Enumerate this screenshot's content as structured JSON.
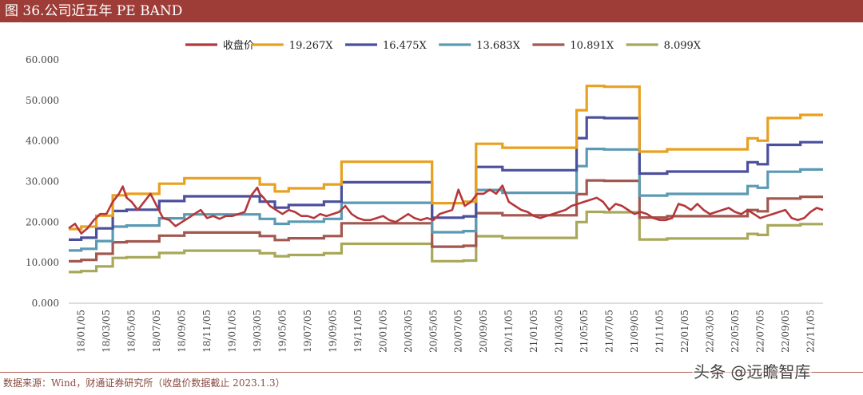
{
  "header": {
    "title": "图 36.公司近五年 PE BAND"
  },
  "footer": {
    "source": "数据来源：Wind，财通证券研究所（收盘价数据截止 2023.1.3）"
  },
  "watermark": {
    "text": "头条 @远瞻智库"
  },
  "colors": {
    "title_bg": "#9e3d37",
    "close": "#b5373c",
    "b19": "#e8a020",
    "b16": "#4b4f9c",
    "b13": "#5b9ab3",
    "b10": "#a2574f",
    "b8": "#a8a85a"
  },
  "chart_data": {
    "type": "line",
    "title": "图 36.公司近五年 PE BAND",
    "ylim": [
      0,
      60
    ],
    "yticks": [
      "0.000",
      "10.000",
      "20.000",
      "30.000",
      "40.000",
      "50.000",
      "60.000"
    ],
    "xlim": [
      0,
      60
    ],
    "xticks": [
      "18/01/05",
      "18/03/05",
      "18/05/05",
      "18/07/05",
      "18/09/05",
      "18/11/05",
      "19/01/05",
      "19/03/05",
      "19/05/05",
      "19/07/05",
      "19/09/05",
      "19/11/05",
      "20/01/05",
      "20/03/05",
      "20/05/05",
      "20/07/05",
      "20/09/05",
      "20/11/05",
      "21/01/05",
      "21/03/05",
      "21/05/05",
      "21/07/05",
      "21/09/05",
      "21/11/05",
      "22/01/05",
      "22/03/05",
      "22/05/05",
      "22/07/05",
      "22/09/05",
      "22/11/05"
    ],
    "eps_steps": [
      {
        "from": 0,
        "to": 1,
        "eps": 0.95
      },
      {
        "from": 1,
        "to": 2.2,
        "eps": 0.98
      },
      {
        "from": 2.2,
        "to": 3.5,
        "eps": 1.12
      },
      {
        "from": 3.5,
        "to": 4.6,
        "eps": 1.38
      },
      {
        "from": 4.6,
        "to": 7.2,
        "eps": 1.4
      },
      {
        "from": 7.2,
        "to": 9.2,
        "eps": 1.53
      },
      {
        "from": 9.2,
        "to": 11.2,
        "eps": 1.6
      },
      {
        "from": 11.2,
        "to": 15.2,
        "eps": 1.6
      },
      {
        "from": 15.2,
        "to": 16.4,
        "eps": 1.52
      },
      {
        "from": 16.4,
        "to": 17.5,
        "eps": 1.43
      },
      {
        "from": 17.5,
        "to": 20.3,
        "eps": 1.47
      },
      {
        "from": 20.3,
        "to": 21.7,
        "eps": 1.52
      },
      {
        "from": 21.7,
        "to": 28.9,
        "eps": 1.81
      },
      {
        "from": 28.9,
        "to": 31.4,
        "eps": 1.28
      },
      {
        "from": 31.4,
        "to": 32.4,
        "eps": 1.3
      },
      {
        "from": 32.4,
        "to": 34.5,
        "eps": 2.04
      },
      {
        "from": 34.5,
        "to": 40.4,
        "eps": 1.99
      },
      {
        "from": 40.4,
        "to": 41.2,
        "eps": 2.47
      },
      {
        "from": 41.2,
        "to": 42.6,
        "eps": 2.78
      },
      {
        "from": 42.6,
        "to": 45.4,
        "eps": 2.77
      },
      {
        "from": 45.4,
        "to": 47.6,
        "eps": 1.94
      },
      {
        "from": 47.6,
        "to": 49.5,
        "eps": 1.97
      },
      {
        "from": 49.5,
        "to": 54.0,
        "eps": 1.97
      },
      {
        "from": 54.0,
        "to": 54.8,
        "eps": 2.11
      },
      {
        "from": 54.8,
        "to": 55.6,
        "eps": 2.08
      },
      {
        "from": 55.6,
        "to": 56.6,
        "eps": 2.37
      },
      {
        "from": 56.6,
        "to": 58.2,
        "eps": 2.37
      },
      {
        "from": 58.2,
        "to": 60,
        "eps": 2.41
      }
    ],
    "series": [
      {
        "name": "收盘价",
        "color_key": "close",
        "points": [
          [
            0,
            18.5
          ],
          [
            0.5,
            19.6
          ],
          [
            1,
            17.2
          ],
          [
            1.5,
            18.5
          ],
          [
            2,
            20.5
          ],
          [
            2.5,
            22
          ],
          [
            3,
            22
          ],
          [
            3.5,
            25
          ],
          [
            4,
            27
          ],
          [
            4.3,
            28.8
          ],
          [
            4.6,
            26
          ],
          [
            5,
            25
          ],
          [
            5.5,
            23
          ],
          [
            6,
            25
          ],
          [
            6.5,
            27
          ],
          [
            7,
            24
          ],
          [
            7.5,
            21
          ],
          [
            8,
            20.5
          ],
          [
            8.5,
            19
          ],
          [
            9,
            20
          ],
          [
            9.5,
            21
          ],
          [
            10,
            22
          ],
          [
            10.5,
            23
          ],
          [
            11,
            21
          ],
          [
            11.5,
            21.5
          ],
          [
            12,
            20.8
          ],
          [
            12.5,
            21.5
          ],
          [
            13,
            21.5
          ],
          [
            13.5,
            22
          ],
          [
            14,
            22.5
          ],
          [
            14.5,
            26.5
          ],
          [
            15,
            28.5
          ],
          [
            15.2,
            27
          ],
          [
            15.5,
            26
          ],
          [
            16,
            24
          ],
          [
            16.5,
            23
          ],
          [
            17,
            22
          ],
          [
            17.5,
            23
          ],
          [
            18,
            22.5
          ],
          [
            18.5,
            21.5
          ],
          [
            19,
            21.5
          ],
          [
            19.5,
            21
          ],
          [
            20,
            22
          ],
          [
            20.5,
            21.5
          ],
          [
            21,
            22
          ],
          [
            21.5,
            22.5
          ],
          [
            22,
            24
          ],
          [
            22.5,
            22
          ],
          [
            23,
            21
          ],
          [
            23.5,
            20.5
          ],
          [
            24,
            20.5
          ],
          [
            24.5,
            21
          ],
          [
            25,
            21.5
          ],
          [
            25.5,
            20.5
          ],
          [
            26,
            20
          ],
          [
            26.5,
            21
          ],
          [
            27,
            22
          ],
          [
            27.5,
            21
          ],
          [
            28,
            20.5
          ],
          [
            28.5,
            21
          ],
          [
            29,
            20.5
          ],
          [
            29.5,
            22
          ],
          [
            30,
            22.5
          ],
          [
            30.5,
            23
          ],
          [
            31,
            28
          ],
          [
            31.5,
            24
          ],
          [
            32,
            25
          ],
          [
            32.5,
            27
          ],
          [
            33,
            27
          ],
          [
            33.5,
            28
          ],
          [
            34,
            27
          ],
          [
            34.5,
            29
          ],
          [
            35,
            25
          ],
          [
            35.5,
            24
          ],
          [
            36,
            23
          ],
          [
            36.5,
            22.5
          ],
          [
            37,
            21.5
          ],
          [
            37.5,
            21
          ],
          [
            38,
            21.5
          ],
          [
            38.5,
            22
          ],
          [
            39,
            22.5
          ],
          [
            39.5,
            23
          ],
          [
            40,
            24
          ],
          [
            40.5,
            24.5
          ],
          [
            41,
            25
          ],
          [
            41.5,
            25.5
          ],
          [
            42,
            26
          ],
          [
            42.5,
            25
          ],
          [
            43,
            23
          ],
          [
            43.5,
            24.5
          ],
          [
            44,
            24
          ],
          [
            44.5,
            23
          ],
          [
            45,
            22
          ],
          [
            45.5,
            22.5
          ],
          [
            46,
            22
          ],
          [
            46.5,
            21
          ],
          [
            47,
            20.5
          ],
          [
            47.5,
            20.5
          ],
          [
            48,
            21
          ],
          [
            48.5,
            24.5
          ],
          [
            49,
            24
          ],
          [
            49.5,
            23
          ],
          [
            50,
            24.5
          ],
          [
            50.5,
            23
          ],
          [
            51,
            22
          ],
          [
            51.5,
            22.5
          ],
          [
            52,
            23
          ],
          [
            52.5,
            23.5
          ],
          [
            53,
            22.5
          ],
          [
            53.5,
            22
          ],
          [
            54,
            23
          ],
          [
            54.5,
            22
          ],
          [
            55,
            21
          ],
          [
            55.5,
            21.5
          ],
          [
            56,
            22
          ],
          [
            56.5,
            22.5
          ],
          [
            57,
            23
          ],
          [
            57.5,
            21
          ],
          [
            58,
            20.5
          ],
          [
            58.5,
            21
          ],
          [
            59,
            22.5
          ],
          [
            59.5,
            23.5
          ],
          [
            60,
            23
          ]
        ]
      },
      {
        "name": "19.267X",
        "color_key": "b19",
        "multiple": 19.267
      },
      {
        "name": "16.475X",
        "color_key": "b16",
        "multiple": 16.475
      },
      {
        "name": "13.683X",
        "color_key": "b13",
        "multiple": 13.683
      },
      {
        "name": "10.891X",
        "color_key": "b10",
        "multiple": 10.891
      },
      {
        "name": "8.099X",
        "color_key": "b8",
        "multiple": 8.099
      }
    ],
    "legend_position": "top-center"
  }
}
